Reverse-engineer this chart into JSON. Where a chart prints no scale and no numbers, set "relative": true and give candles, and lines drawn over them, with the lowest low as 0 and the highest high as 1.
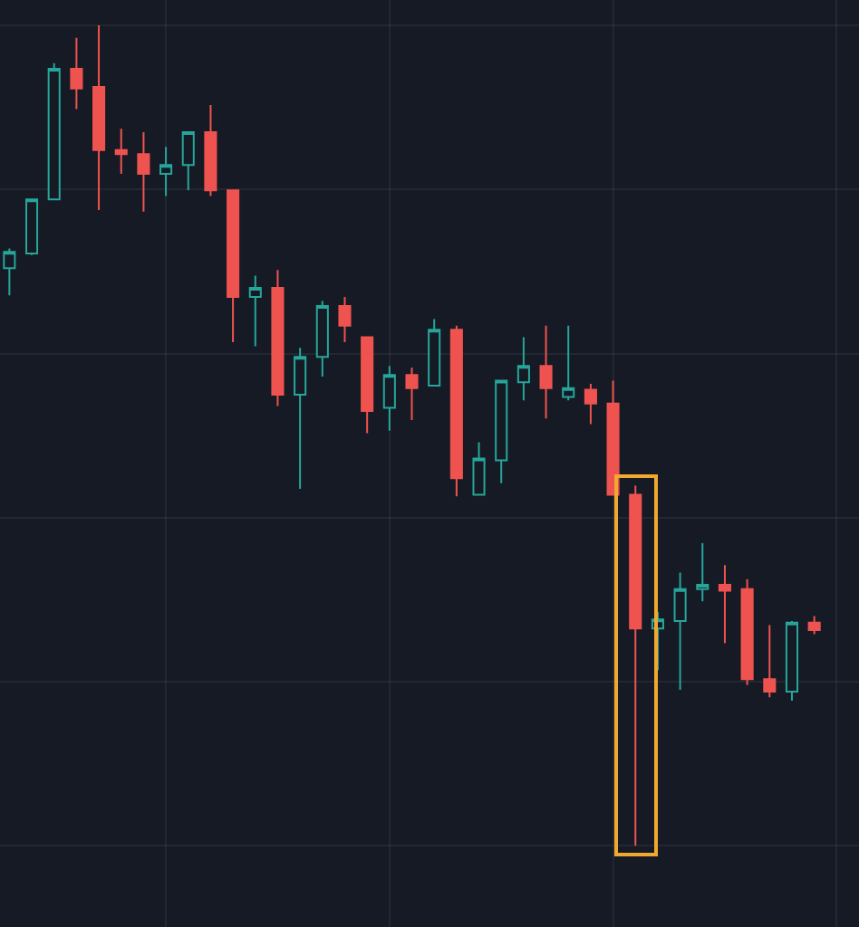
{
  "chart_data": {
    "type": "candlestick",
    "relative": true,
    "grid": true,
    "categories": [
      null,
      null,
      null,
      null,
      null,
      null,
      null,
      null,
      null,
      null,
      null,
      null,
      null,
      null,
      null,
      null,
      null,
      null,
      null,
      null,
      null,
      null,
      null,
      null,
      null,
      null,
      null,
      null,
      null,
      null,
      null,
      null,
      null,
      null,
      null,
      null,
      null
    ],
    "ohlc": [
      [
        0.704,
        0.728,
        0.671,
        0.724
      ],
      [
        0.722,
        0.788,
        0.72,
        0.788
      ],
      [
        0.788,
        0.954,
        0.788,
        0.947
      ],
      [
        0.947,
        0.985,
        0.898,
        0.923
      ],
      [
        0.925,
        1,
        0.775,
        0.848
      ],
      [
        0.848,
        0.874,
        0.819,
        0.843
      ],
      [
        0.843,
        0.87,
        0.773,
        0.819
      ],
      [
        0.819,
        0.852,
        0.792,
        0.83
      ],
      [
        0.83,
        0.87,
        0.799,
        0.87
      ],
      [
        0.87,
        0.903,
        0.792,
        0.799
      ],
      [
        0.799,
        0.799,
        0.614,
        0.669
      ],
      [
        0.669,
        0.695,
        0.609,
        0.68
      ],
      [
        0.68,
        0.702,
        0.536,
        0.55
      ],
      [
        0.55,
        0.607,
        0.435,
        0.596
      ],
      [
        0.596,
        0.664,
        0.572,
        0.658
      ],
      [
        0.658,
        0.669,
        0.614,
        0.634
      ],
      [
        0.62,
        0.62,
        0.503,
        0.53
      ],
      [
        0.534,
        0.585,
        0.506,
        0.574
      ],
      [
        0.574,
        0.583,
        0.519,
        0.558
      ],
      [
        0.561,
        0.642,
        0.561,
        0.629
      ],
      [
        0.629,
        0.634,
        0.426,
        0.448
      ],
      [
        0.428,
        0.492,
        0.428,
        0.472
      ],
      [
        0.47,
        0.567,
        0.442,
        0.567
      ],
      [
        0.565,
        0.62,
        0.543,
        0.585
      ],
      [
        0.585,
        0.634,
        0.521,
        0.558
      ],
      [
        0.547,
        0.634,
        0.543,
        0.558
      ],
      [
        0.556,
        0.563,
        0.514,
        0.539
      ],
      [
        0.539,
        0.567,
        0.428,
        0.428
      ],
      [
        0.428,
        0.439,
        0,
        0.265
      ],
      [
        0.265,
        0.285,
        0.214,
        0.276
      ],
      [
        0.274,
        0.333,
        0.19,
        0.313
      ],
      [
        0.313,
        0.369,
        0.298,
        0.318
      ],
      [
        0.318,
        0.342,
        0.247,
        0.311
      ],
      [
        0.313,
        0.325,
        0.196,
        0.203
      ],
      [
        0.203,
        0.269,
        0.181,
        0.188
      ],
      [
        0.188,
        0.274,
        0.177,
        0.272
      ],
      [
        0.272,
        0.28,
        0.258,
        0.263
      ]
    ],
    "colors": [
      "#26a69a",
      "#26a69a",
      "#26a69a",
      "#ef5350",
      "#ef5350",
      "#ef5350",
      "#ef5350",
      "#26a69a",
      "#26a69a",
      "#ef5350",
      "#ef5350",
      "#26a69a",
      "#ef5350",
      "#26a69a",
      "#26a69a",
      "#ef5350",
      "#ef5350",
      "#26a69a",
      "#ef5350",
      "#26a69a",
      "#ef5350",
      "#26a69a",
      "#26a69a",
      "#26a69a",
      "#ef5350",
      "#26a69a",
      "#ef5350",
      "#ef5350",
      "#ef5350",
      "#26a69a",
      "#26a69a",
      "#26a69a",
      "#ef5350",
      "#ef5350",
      "#ef5350",
      "#26a69a",
      "#ef5350"
    ]
  }
}
